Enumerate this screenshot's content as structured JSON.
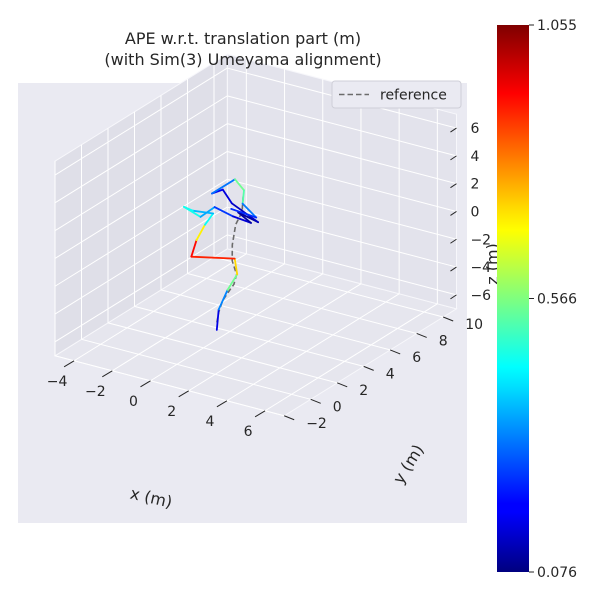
{
  "chart_data": {
    "type": "line",
    "projection": "3d",
    "title": "APE w.r.t. translation part (m)",
    "subtitle": "(with Sim(3) Umeyama alignment)",
    "xlabel": "x (m)",
    "ylabel": "y (m)",
    "zlabel": "z (m)",
    "xlim": [
      -5,
      7
    ],
    "ylim": [
      -2,
      11
    ],
    "zlim": [
      -7,
      7
    ],
    "x_ticks": [
      "−4",
      "−2",
      "0",
      "2",
      "4",
      "6"
    ],
    "y_ticks": [
      "−2",
      "0",
      "2",
      "4",
      "6",
      "8",
      "10"
    ],
    "z_ticks": [
      "−6",
      "−4",
      "−2",
      "0",
      "2",
      "4",
      "6"
    ],
    "x_tick_values": [
      -4,
      -2,
      0,
      2,
      4,
      6
    ],
    "y_tick_values": [
      -2,
      0,
      2,
      4,
      6,
      8,
      10
    ],
    "z_tick_values": [
      -6,
      -4,
      -2,
      0,
      2,
      4,
      6
    ],
    "grid": true,
    "legend": {
      "position": "top-right",
      "entries": [
        "reference"
      ]
    },
    "reference_style": {
      "color": "#6b6b6b",
      "dash": "dashed"
    },
    "colormap": "jet",
    "colorbar": {
      "min": 0.076,
      "mid": 0.566,
      "max": 1.055,
      "labels": [
        "1.055",
        "0.566",
        "0.076"
      ]
    },
    "reference": [
      [
        0.9,
        3.7,
        3.2
      ],
      [
        0.7,
        3.9,
        1.9
      ],
      [
        0.3,
        4.0,
        0.8
      ],
      [
        0.4,
        3.6,
        -0.4
      ],
      [
        0.6,
        3.3,
        -1.3
      ],
      [
        0.9,
        3.2,
        -2.1
      ],
      [
        0.9,
        3.0,
        -2.7
      ],
      [
        0.6,
        3.1,
        -3.3
      ],
      [
        0.3,
        3.0,
        -4.1
      ],
      [
        0.1,
        3.0,
        -5.0
      ],
      [
        0.0,
        3.0,
        -5.8
      ]
    ],
    "estimate": [
      {
        "x": 0.0,
        "y": 3.0,
        "z": -6.3,
        "ape": 0.15
      },
      {
        "x": 0.1,
        "y": 3.0,
        "z": -4.8,
        "ape": 0.2
      },
      {
        "x": 0.5,
        "y": 3.1,
        "z": -3.3,
        "ape": 0.45
      },
      {
        "x": 1.0,
        "y": 3.1,
        "z": -2.0,
        "ape": 0.65
      },
      {
        "x": 0.8,
        "y": 3.2,
        "z": -1.0,
        "ape": 0.8
      },
      {
        "x": -1.4,
        "y": 3.1,
        "z": -1.6,
        "ape": 1.0
      },
      {
        "x": -1.2,
        "y": 3.2,
        "z": -0.4,
        "ape": 0.85
      },
      {
        "x": -0.9,
        "y": 3.4,
        "z": 0.7,
        "ape": 0.55
      },
      {
        "x": -0.6,
        "y": 3.6,
        "z": 1.5,
        "ape": 0.35
      },
      {
        "x": -1.6,
        "y": 3.5,
        "z": 1.4,
        "ape": 0.4
      },
      {
        "x": -2.0,
        "y": 3.4,
        "z": 1.6,
        "ape": 0.5
      },
      {
        "x": -1.2,
        "y": 3.5,
        "z": 1.1,
        "ape": 0.42
      },
      {
        "x": -0.6,
        "y": 3.7,
        "z": 1.9,
        "ape": 0.3
      },
      {
        "x": 0.3,
        "y": 3.8,
        "z": 1.5,
        "ape": 0.2
      },
      {
        "x": 1.1,
        "y": 4.0,
        "z": 1.2,
        "ape": 0.12
      },
      {
        "x": 0.5,
        "y": 3.9,
        "z": 1.8,
        "ape": 0.1
      },
      {
        "x": 1.4,
        "y": 4.1,
        "z": 1.3,
        "ape": 0.1
      },
      {
        "x": 0.3,
        "y": 3.7,
        "z": 2.5,
        "ape": 0.18
      },
      {
        "x": -0.1,
        "y": 3.6,
        "z": 3.4,
        "ape": 0.15
      },
      {
        "x": -0.6,
        "y": 3.5,
        "z": 3.0,
        "ape": 0.22
      },
      {
        "x": 0.4,
        "y": 3.8,
        "z": 4.2,
        "ape": 0.4
      },
      {
        "x": 0.8,
        "y": 3.9,
        "z": 3.5,
        "ape": 0.7
      },
      {
        "x": 0.8,
        "y": 3.8,
        "z": 2.6,
        "ape": 0.35
      },
      {
        "x": 1.3,
        "y": 4.1,
        "z": 1.6,
        "ape": 0.28
      },
      {
        "x": 0.2,
        "y": 3.8,
        "z": 2.0,
        "ape": 0.2
      }
    ]
  }
}
